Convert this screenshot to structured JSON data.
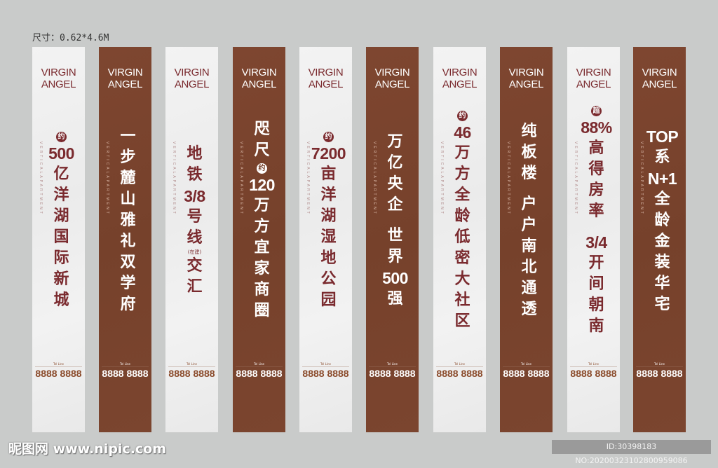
{
  "size_label": "尺寸：0.62*4.6M",
  "colors": {
    "light_bg": "#efefef",
    "dark_bg": "#7a4530",
    "accent_text": "#7a2a2e",
    "phone_brown": "#8a4a2a"
  },
  "banners": [
    {
      "theme": "light",
      "logo": [
        "VIRGIN",
        "ANGEL"
      ],
      "side_text": "VERTICALAPARTMENT",
      "tel_label": "Tel Line",
      "tel": "8888 8888",
      "lines": [
        {
          "k": "badge",
          "t": "约"
        },
        {
          "k": "num",
          "t": "500"
        },
        {
          "t": "亿"
        },
        {
          "t": "洋"
        },
        {
          "t": "湖"
        },
        {
          "t": "国"
        },
        {
          "t": "际"
        },
        {
          "t": "新"
        },
        {
          "t": "城"
        }
      ]
    },
    {
      "theme": "dark",
      "logo": [
        "VIRGIN",
        "ANGEL"
      ],
      "side_text": "VERTICALAPARTMENT",
      "tel_label": "Tel Line",
      "tel": "8888 8888",
      "lines": [
        {
          "t": "一"
        },
        {
          "t": "步"
        },
        {
          "t": "麓"
        },
        {
          "t": "山"
        },
        {
          "t": "雅"
        },
        {
          "t": "礼"
        },
        {
          "t": "双"
        },
        {
          "t": "学"
        },
        {
          "t": "府"
        }
      ]
    },
    {
      "theme": "light",
      "logo": [
        "VIRGIN",
        "ANGEL"
      ],
      "side_text": "VERTICALAPARTMENT",
      "tel_label": "Tel Line",
      "tel": "8888 8888",
      "lines": [
        {
          "t": "地"
        },
        {
          "t": "铁"
        },
        {
          "k": "num",
          "t": "3/8"
        },
        {
          "t": "号"
        },
        {
          "t": "线"
        },
        {
          "k": "small",
          "t": "(在建)"
        },
        {
          "t": "交"
        },
        {
          "t": "汇"
        }
      ]
    },
    {
      "theme": "dark",
      "logo": [
        "VIRGIN",
        "ANGEL"
      ],
      "side_text": "VERTICALAPARTMENT",
      "tel_label": "Tel Line",
      "tel": "8888 8888",
      "lines": [
        {
          "t": "咫"
        },
        {
          "t": "尺"
        },
        {
          "k": "badge",
          "t": "约"
        },
        {
          "k": "num",
          "t": "120"
        },
        {
          "t": "万"
        },
        {
          "t": "方"
        },
        {
          "t": "宜"
        },
        {
          "t": "家"
        },
        {
          "t": "商"
        },
        {
          "t": "圈"
        }
      ]
    },
    {
      "theme": "light",
      "logo": [
        "VIRGIN",
        "ANGEL"
      ],
      "side_text": "VERTICALAPARTMENT",
      "tel_label": "Tel Line",
      "tel": "8888 8888",
      "lines": [
        {
          "k": "badge",
          "t": "约"
        },
        {
          "k": "num",
          "t": "7200"
        },
        {
          "t": "亩"
        },
        {
          "t": "洋"
        },
        {
          "t": "湖"
        },
        {
          "t": "湿"
        },
        {
          "t": "地"
        },
        {
          "t": "公"
        },
        {
          "t": "园"
        }
      ]
    },
    {
      "theme": "dark",
      "logo": [
        "VIRGIN",
        "ANGEL"
      ],
      "side_text": "VERTICALAPARTMENT",
      "tel_label": "Tel Line",
      "tel": "8888 8888",
      "lines": [
        {
          "t": "万"
        },
        {
          "t": "亿"
        },
        {
          "t": "央"
        },
        {
          "t": "企"
        },
        {
          "k": "gap",
          "t": ""
        },
        {
          "t": "世"
        },
        {
          "t": "界"
        },
        {
          "k": "num",
          "t": "500"
        },
        {
          "t": "强"
        }
      ]
    },
    {
      "theme": "light",
      "logo": [
        "VIRGIN",
        "ANGEL"
      ],
      "side_text": "VERTICALAPARTMENT",
      "tel_label": "Tel Line",
      "tel": "8888 8888",
      "lines": [
        {
          "k": "badge",
          "t": "约"
        },
        {
          "k": "num",
          "t": "46"
        },
        {
          "t": "万"
        },
        {
          "t": "方"
        },
        {
          "t": "全"
        },
        {
          "t": "龄"
        },
        {
          "t": "低"
        },
        {
          "t": "密"
        },
        {
          "t": "大"
        },
        {
          "t": "社"
        },
        {
          "t": "区"
        }
      ]
    },
    {
      "theme": "dark",
      "logo": [
        "VIRGIN",
        "ANGEL"
      ],
      "side_text": "VERTICALAPARTMENT",
      "tel_label": "Tel Line",
      "tel": "8888 8888",
      "lines": [
        {
          "t": "纯"
        },
        {
          "t": "板"
        },
        {
          "t": "楼"
        },
        {
          "k": "gap",
          "t": ""
        },
        {
          "t": "户"
        },
        {
          "t": "户"
        },
        {
          "t": "南"
        },
        {
          "t": "北"
        },
        {
          "t": "通"
        },
        {
          "t": "透"
        }
      ]
    },
    {
      "theme": "light",
      "logo": [
        "VIRGIN",
        "ANGEL"
      ],
      "side_text": "VERTICALAPARTMENT",
      "tel_label": "Tel Line",
      "tel": "8888 8888",
      "lines": [
        {
          "k": "badge",
          "t": "超"
        },
        {
          "k": "num",
          "t": "88%"
        },
        {
          "t": "高"
        },
        {
          "t": "得"
        },
        {
          "t": "房"
        },
        {
          "t": "率"
        },
        {
          "k": "gap",
          "t": ""
        },
        {
          "k": "num",
          "t": "3/4"
        },
        {
          "t": "开"
        },
        {
          "t": "间"
        },
        {
          "t": "朝"
        },
        {
          "t": "南"
        }
      ]
    },
    {
      "theme": "dark",
      "logo": [
        "VIRGIN",
        "ANGEL"
      ],
      "side_text": "VERTICALAPARTMENT",
      "tel_label": "Tel Line",
      "tel": "8888 8888",
      "lines": [
        {
          "k": "num",
          "t": "TOP"
        },
        {
          "t": "系"
        },
        {
          "k": "num",
          "t": "N+1"
        },
        {
          "t": "全"
        },
        {
          "t": "龄"
        },
        {
          "t": "金"
        },
        {
          "t": "装"
        },
        {
          "t": "华"
        },
        {
          "t": "宅"
        }
      ]
    }
  ],
  "watermark": {
    "site": "昵图网 www.nipic.com",
    "id_text": "ID:30398183 NO:20200323102800959086"
  }
}
